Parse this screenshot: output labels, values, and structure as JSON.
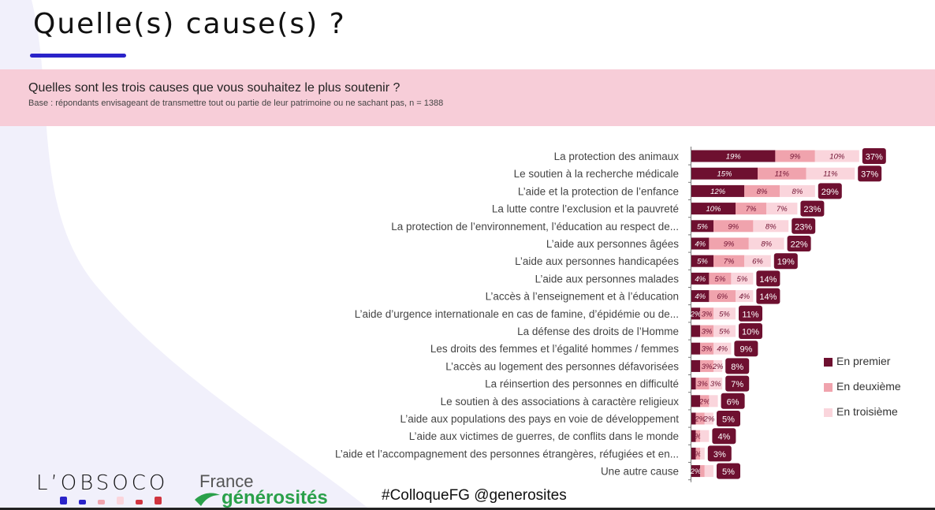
{
  "header": {
    "title": "Quelle(s) cause(s) ?",
    "question": "Quelles sont les trois causes que vous souhaitez le plus soutenir ?",
    "base": "Base : répondants envisageant de transmettre tout ou partie de leur patrimoine ou ne sachant pas, n = 1388"
  },
  "colors": {
    "premier": "#6e1030",
    "deuxieme": "#f0a3ad",
    "troisieme": "#fad5dc",
    "total_badge": "#6e1030",
    "banner": "#f7cdd8",
    "accent_blue": "#2a23c9"
  },
  "chart_data": {
    "type": "bar",
    "orientation": "horizontal-stacked",
    "categories": [
      "La protection des animaux",
      "Le soutien à la recherche médicale",
      "L’aide et la protection de l’enfance",
      "La lutte contre l’exclusion et la pauvreté",
      "La protection de l’environnement, l’éducation au respect de...",
      "L’aide aux personnes âgées",
      "L’aide aux personnes handicapées",
      "L’aide aux personnes malades",
      "L’accès à l’enseignement et à l’éducation",
      "L’aide d’urgence internationale en cas de famine, d’épidémie ou de...",
      "La défense des droits de l’Homme",
      "Les droits des femmes et l’égalité hommes / femmes",
      "L’accès au logement des personnes défavorisées",
      "La réinsertion des personnes en difficulté",
      "Le soutien à des associations à caractère religieux",
      "L’aide aux populations des pays en voie de développement",
      "L’aide aux victimes de guerres, de conflits dans le monde",
      "L’aide et l’accompagnement des personnes étrangères, réfugiées et en...",
      "Une autre cause"
    ],
    "series": [
      {
        "name": "En premier",
        "values": [
          19,
          15,
          12,
          10,
          5,
          4,
          5,
          4,
          4,
          2,
          2,
          2,
          2,
          1,
          2,
          1,
          1,
          1,
          2
        ]
      },
      {
        "name": "En deuxième",
        "values": [
          9,
          11,
          8,
          7,
          9,
          9,
          7,
          5,
          6,
          3,
          3,
          3,
          3,
          3,
          2,
          2,
          1,
          1,
          1
        ]
      },
      {
        "name": "En troisième",
        "values": [
          10,
          11,
          8,
          7,
          8,
          8,
          6,
          5,
          4,
          5,
          5,
          4,
          2,
          3,
          2,
          2,
          2,
          1,
          2
        ]
      }
    ],
    "labels": [
      [
        "19%",
        "9%",
        "10%"
      ],
      [
        "15%",
        "11%",
        "11%"
      ],
      [
        "12%",
        "8%",
        "8%"
      ],
      [
        "10%",
        "7%",
        "7%"
      ],
      [
        "5%",
        "9%",
        "8%"
      ],
      [
        "4%",
        "9%",
        "8%"
      ],
      [
        "5%",
        "7%",
        "6%"
      ],
      [
        "4%",
        "5%",
        "5%"
      ],
      [
        "4%",
        "6%",
        "4%"
      ],
      [
        "2%",
        "3%",
        "5%"
      ],
      [
        "",
        "3%",
        "5%"
      ],
      [
        "",
        "3%",
        "4%"
      ],
      [
        "",
        "3%",
        "2%"
      ],
      [
        "",
        "3%",
        "3%"
      ],
      [
        "",
        "2%",
        ""
      ],
      [
        "",
        "2%",
        "2%"
      ],
      [
        "",
        "%",
        ""
      ],
      [
        "",
        "%",
        ""
      ],
      [
        "2%",
        "",
        ""
      ]
    ],
    "totals": [
      "37%",
      "37%",
      "29%",
      "23%",
      "23%",
      "22%",
      "19%",
      "14%",
      "14%",
      "11%",
      "10%",
      "9%",
      "8%",
      "7%",
      "6%",
      "5%",
      "4%",
      "3%",
      "5%"
    ],
    "legend_position": "right"
  },
  "footer": {
    "logo_obsoco": "L’OBSOCO",
    "logo_fg_line1": "France",
    "logo_fg_line2": "générosités",
    "hashtags": "#ColloqueFG  @generosites"
  }
}
